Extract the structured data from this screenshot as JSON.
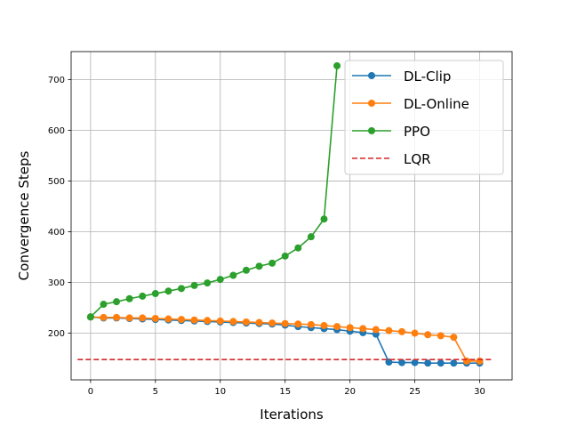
{
  "chart_data": {
    "type": "line",
    "xlabel": "Iterations",
    "ylabel": "Convergence Steps",
    "xlim": [
      -1.5,
      32.5
    ],
    "ylim": [
      108,
      755
    ],
    "xticks": [
      0,
      5,
      10,
      15,
      20,
      25,
      30
    ],
    "yticks": [
      200,
      300,
      400,
      500,
      600,
      700
    ],
    "grid": true,
    "legend_position": "top-right",
    "series": [
      {
        "name": "DL-Clip",
        "color": "#1f77b4",
        "marker": "circle",
        "linestyle": "solid",
        "x": [
          0,
          1,
          2,
          3,
          4,
          5,
          6,
          7,
          8,
          9,
          10,
          11,
          12,
          13,
          14,
          15,
          16,
          17,
          18,
          19,
          20,
          21,
          22,
          23,
          24,
          25,
          26,
          27,
          28,
          29,
          30
        ],
        "y": [
          232,
          230,
          230,
          229,
          228,
          227,
          226,
          225,
          224,
          223,
          222,
          221,
          220,
          219,
          218,
          216,
          213,
          211,
          209,
          207,
          204,
          201,
          198,
          143,
          142,
          142,
          141,
          141,
          141,
          141,
          141
        ]
      },
      {
        "name": "DL-Online",
        "color": "#ff7f0e",
        "marker": "circle",
        "linestyle": "solid",
        "x": [
          0,
          1,
          2,
          3,
          4,
          5,
          6,
          7,
          8,
          9,
          10,
          11,
          12,
          13,
          14,
          15,
          16,
          17,
          18,
          19,
          20,
          21,
          22,
          23,
          24,
          25,
          26,
          27,
          28,
          29,
          30
        ],
        "y": [
          232,
          231,
          231,
          230,
          230,
          229,
          228,
          227,
          226,
          225,
          224,
          223,
          222,
          221,
          220,
          219,
          218,
          217,
          215,
          213,
          211,
          209,
          207,
          205,
          203,
          200,
          197,
          195,
          192,
          145,
          145
        ]
      },
      {
        "name": "PPO",
        "color": "#2ca02c",
        "marker": "circle",
        "linestyle": "solid",
        "x": [
          0,
          1,
          2,
          3,
          4,
          5,
          6,
          7,
          8,
          9,
          10,
          11,
          12,
          13,
          14,
          15,
          16,
          17,
          18,
          19
        ],
        "y": [
          232,
          257,
          262,
          268,
          273,
          278,
          283,
          288,
          294,
          299,
          306,
          314,
          324,
          332,
          338,
          352,
          368,
          390,
          425,
          727
        ]
      },
      {
        "name": "LQR",
        "color": "#d62728",
        "marker": "none",
        "linestyle": "dashed",
        "x": [
          -1,
          31
        ],
        "y": [
          148,
          148
        ]
      }
    ]
  }
}
